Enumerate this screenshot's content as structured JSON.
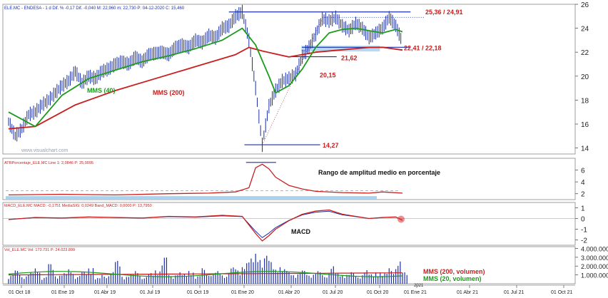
{
  "header": "ELE.MC - ENDESA - 1 d  Dif. % -0,17  Dif. -0,040  M: 22,960  m: 22,730  P: 04-12-2020  C: 15,460",
  "watermark": "www.visualchart.com",
  "colors": {
    "price": "#1b2fa8",
    "mms40": "#1c9a1c",
    "mms200": "#c81e1e",
    "atr": "#c81e1e",
    "macd": "#c81e1e",
    "signal": "#1b2fa8",
    "volume": "#1b2fa8",
    "vol200": "#c81e1e",
    "vol20": "#1c9a1c",
    "highlight": "#a8d2f0",
    "hline": "#1b2fa8",
    "label": "#c81e1e"
  },
  "x_axis": {
    "labels": [
      "01 Oct 18",
      "01 Ene 19",
      "01 Abr 19",
      "01 Jul 19",
      "01 Oct 19",
      "01 Ene 20",
      "01 Abr 20",
      "01 Jul 20",
      "01 Oct 20",
      "01 Ene 21",
      "01 Abr 21",
      "01 Jul 21",
      "01 Oct 21"
    ],
    "year_label": "2021"
  },
  "chart_data": [
    {
      "type": "line",
      "panel": "price",
      "ylim": [
        13.5,
        26
      ],
      "yticks": [
        "26",
        "24",
        "22",
        "20",
        "18",
        "16",
        "14"
      ],
      "series": [
        {
          "name": "MMS (40)",
          "style": "line"
        },
        {
          "name": "MMS (200)",
          "style": "line"
        }
      ],
      "price_points": [
        [
          0,
          16.2
        ],
        [
          1,
          15.0
        ],
        [
          2,
          15.6
        ],
        [
          3,
          16.8
        ],
        [
          4,
          17.0
        ],
        [
          5,
          17.6
        ],
        [
          6,
          18.0
        ],
        [
          7,
          18.6
        ],
        [
          8,
          19.2
        ],
        [
          9,
          19.6
        ],
        [
          10,
          20.4
        ],
        [
          11,
          19.4
        ],
        [
          12,
          20.0
        ],
        [
          13,
          19.8
        ],
        [
          14,
          20.4
        ],
        [
          15,
          20.6
        ],
        [
          16,
          21.0
        ],
        [
          17,
          21.2
        ],
        [
          18,
          21.0
        ],
        [
          19,
          21.6
        ],
        [
          20,
          21.2
        ],
        [
          21,
          21.8
        ],
        [
          22,
          21.9
        ],
        [
          23,
          22.0
        ],
        [
          24,
          21.8
        ],
        [
          25,
          22.4
        ],
        [
          26,
          22.6
        ],
        [
          27,
          22.4
        ],
        [
          28,
          23.0
        ],
        [
          29,
          22.8
        ],
        [
          30,
          23.4
        ],
        [
          31,
          23.2
        ],
        [
          32,
          24.0
        ],
        [
          33,
          24.2
        ],
        [
          34,
          25.0
        ],
        [
          35,
          25.36
        ],
        [
          36,
          23.0
        ],
        [
          37,
          19.0
        ],
        [
          38,
          14.27
        ],
        [
          39,
          17.5
        ],
        [
          40,
          18.8
        ],
        [
          41,
          19.6
        ],
        [
          42,
          19.8
        ],
        [
          43,
          20.15
        ],
        [
          44,
          21.62
        ],
        [
          45,
          22.4
        ],
        [
          46,
          23.5
        ],
        [
          47,
          24.8
        ],
        [
          48,
          24.6
        ],
        [
          49,
          24.9
        ],
        [
          50,
          24.2
        ],
        [
          51,
          23.8
        ],
        [
          52,
          24.4
        ],
        [
          53,
          24.0
        ],
        [
          54,
          23.2
        ],
        [
          55,
          23.6
        ],
        [
          56,
          24.0
        ],
        [
          57,
          24.91
        ],
        [
          58,
          24.2
        ],
        [
          59,
          22.8
        ]
      ],
      "mms40": [
        [
          0,
          17.0
        ],
        [
          4,
          15.8
        ],
        [
          8,
          18.4
        ],
        [
          12,
          19.8
        ],
        [
          16,
          20.5
        ],
        [
          20,
          21.2
        ],
        [
          24,
          21.7
        ],
        [
          28,
          22.3
        ],
        [
          32,
          23.0
        ],
        [
          35,
          24.0
        ],
        [
          37,
          22.6
        ],
        [
          39,
          20.0
        ],
        [
          40,
          18.6
        ],
        [
          42,
          19.2
        ],
        [
          44,
          20.6
        ],
        [
          46,
          22.4
        ],
        [
          48,
          23.6
        ],
        [
          50,
          23.9
        ],
        [
          52,
          24.0
        ],
        [
          54,
          23.8
        ],
        [
          56,
          23.6
        ],
        [
          58,
          23.9
        ],
        [
          59,
          23.7
        ]
      ],
      "mms200": [
        [
          0,
          15.6
        ],
        [
          4,
          15.8
        ],
        [
          10,
          17.6
        ],
        [
          16,
          18.8
        ],
        [
          22,
          19.8
        ],
        [
          28,
          20.8
        ],
        [
          34,
          21.8
        ],
        [
          36,
          22.4
        ],
        [
          38,
          22.1
        ],
        [
          42,
          21.6
        ],
        [
          46,
          22.0
        ],
        [
          50,
          22.2
        ],
        [
          54,
          22.4
        ],
        [
          56,
          22.41
        ],
        [
          59,
          22.18
        ]
      ],
      "annotations": [
        {
          "text": "25,36 / 24,91",
          "value": 25.36
        },
        {
          "text": "22,41 / 22,18",
          "value": 22.41
        },
        {
          "text": "21,62",
          "value": 21.62
        },
        {
          "text": "20,15",
          "value": 20.15
        },
        {
          "text": "14,27",
          "value": 14.27
        },
        {
          "text": "MMS (40)"
        },
        {
          "text": "MMS (200)"
        }
      ]
    },
    {
      "type": "line",
      "panel": "atr",
      "header": "ATRPorcentaje_ELE.MC  Line 1: 2,0846  P: 25,0095",
      "ylim": [
        1,
        8
      ],
      "yticks": [
        "6",
        "4",
        "2"
      ],
      "baseline": 2.5,
      "annotation": "Rango de amplitud medio en porcentaje",
      "points": [
        [
          0,
          1.8
        ],
        [
          8,
          1.9
        ],
        [
          16,
          1.8
        ],
        [
          24,
          2.0
        ],
        [
          30,
          2.1
        ],
        [
          34,
          2.3
        ],
        [
          36,
          3.0
        ],
        [
          37,
          6.4
        ],
        [
          38,
          7.0
        ],
        [
          39,
          6.2
        ],
        [
          40,
          4.8
        ],
        [
          42,
          3.4
        ],
        [
          44,
          2.8
        ],
        [
          46,
          2.4
        ],
        [
          50,
          2.2
        ],
        [
          54,
          2.1
        ],
        [
          56,
          2.3
        ],
        [
          59,
          2.1
        ]
      ]
    },
    {
      "type": "line",
      "panel": "macd",
      "header": "MACD_ELE.MC  MACD: -0,1751  MediaSIG: 0,0249  Band_MACD: 0,0000  P: 13,7950",
      "ylim": [
        -2.5,
        1.5
      ],
      "yticks": [
        "1",
        "0",
        "-1",
        "-2"
      ],
      "annotation": "MACD",
      "points": [
        [
          0,
          -0.1
        ],
        [
          4,
          0.1
        ],
        [
          8,
          0.05
        ],
        [
          12,
          0.15
        ],
        [
          16,
          0.1
        ],
        [
          20,
          0.05
        ],
        [
          24,
          0.2
        ],
        [
          28,
          0.15
        ],
        [
          32,
          0.3
        ],
        [
          35,
          0.2
        ],
        [
          36,
          -0.6
        ],
        [
          37,
          -1.4
        ],
        [
          38,
          -2.1
        ],
        [
          39,
          -1.6
        ],
        [
          40,
          -1.0
        ],
        [
          42,
          -0.2
        ],
        [
          44,
          0.4
        ],
        [
          46,
          0.7
        ],
        [
          48,
          0.8
        ],
        [
          50,
          0.4
        ],
        [
          52,
          0.2
        ],
        [
          54,
          0.0
        ],
        [
          56,
          0.1
        ],
        [
          58,
          0.15
        ],
        [
          59,
          -0.17
        ]
      ]
    },
    {
      "type": "bar",
      "panel": "volume",
      "header": "Vol_ELE.MC  Vol: 173.731  P: 24.023.899",
      "ylim": [
        0,
        4200000
      ],
      "yticks": [
        "4.000.000",
        "3.000.000",
        "2.000.000",
        "1.000.000"
      ],
      "series": [
        {
          "name": "MMS (200, volumen)"
        },
        {
          "name": "MMS (20, volumen)"
        }
      ],
      "values": [
        900000,
        1400000,
        800000,
        1200000,
        1600000,
        700000,
        2100000,
        900000,
        1100000,
        1500000,
        800000,
        1300000,
        1800000,
        600000,
        900000,
        1200000,
        2400000,
        800000,
        1000000,
        1300000,
        700000,
        1100000,
        1500000,
        2800000,
        900000,
        1200000,
        1000000,
        1400000,
        800000,
        1600000,
        1100000,
        1300000,
        900000,
        1700000,
        1500000,
        2200000,
        2600000,
        3200000,
        2900000,
        2400000,
        1800000,
        1500000,
        1200000,
        1100000,
        1400000,
        1000000,
        1300000,
        900000,
        1800000,
        1100000,
        1000000,
        1200000,
        800000,
        1400000,
        1000000,
        1300000,
        1100000,
        1600000,
        2300000,
        1200000
      ]
    }
  ]
}
